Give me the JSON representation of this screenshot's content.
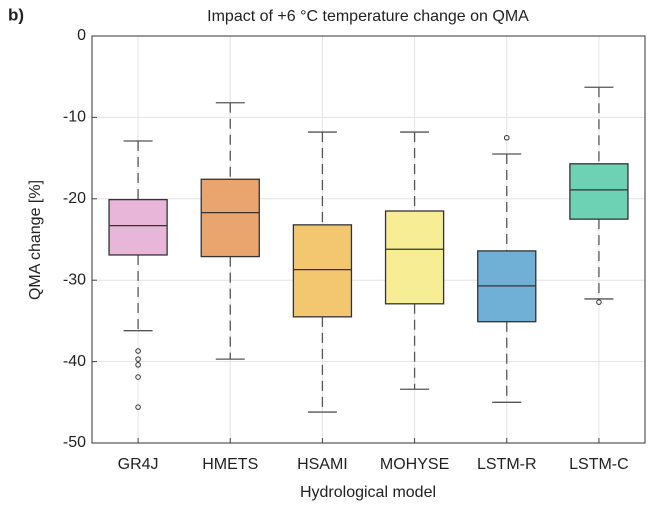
{
  "chart_data": {
    "type": "box",
    "panel_label": "b)",
    "title": "Impact of +6 °C temperature change on QMA",
    "xlabel": "Hydrological model",
    "ylabel": "QMA change [%]",
    "categories": [
      "GR4J",
      "HMETS",
      "HSAMI",
      "MOHYSE",
      "LSTM-R",
      "LSTM-C"
    ],
    "colors": [
      "#e8b6d8",
      "#eaa56f",
      "#f2c770",
      "#f7ed95",
      "#70afd6",
      "#6dd2b3"
    ],
    "boxes": [
      {
        "whislo": -36.2,
        "q1": -26.9,
        "med": -23.3,
        "q3": -20.1,
        "whishi": -12.9,
        "fliers": [
          -38.7,
          -39.7,
          -40.4,
          -41.9,
          -45.6
        ]
      },
      {
        "whislo": -39.7,
        "q1": -27.1,
        "med": -21.7,
        "q3": -17.6,
        "whishi": -8.2,
        "fliers": []
      },
      {
        "whislo": -46.2,
        "q1": -34.5,
        "med": -28.7,
        "q3": -23.2,
        "whishi": -11.8,
        "fliers": []
      },
      {
        "whislo": -43.4,
        "q1": -32.9,
        "med": -26.2,
        "q3": -21.5,
        "whishi": -11.8,
        "fliers": []
      },
      {
        "whislo": -45.0,
        "q1": -35.1,
        "med": -30.7,
        "q3": -26.4,
        "whishi": -14.5,
        "fliers": [
          -12.5
        ]
      },
      {
        "whislo": -32.3,
        "q1": -22.5,
        "med": -18.9,
        "q3": -15.7,
        "whishi": -6.3,
        "fliers": [
          -32.7
        ]
      }
    ],
    "ylim": [
      -50,
      0
    ],
    "yticks": [
      -50,
      -40,
      -30,
      -20,
      -10,
      0
    ],
    "grid": true
  }
}
